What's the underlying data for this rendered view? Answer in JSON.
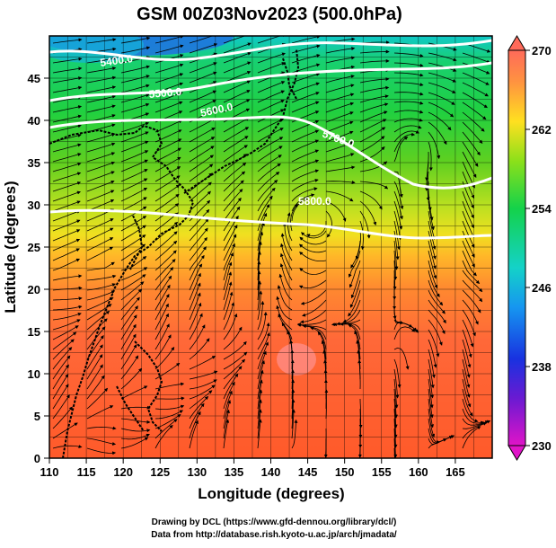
{
  "title": "GSM 00Z03Nov2023 (500.0hPa)",
  "x_axis": {
    "label": "Longitude (degrees)",
    "ticks": [
      "110",
      "115",
      "120",
      "125",
      "130",
      "135",
      "140",
      "145",
      "150",
      "155",
      "160",
      "165"
    ]
  },
  "y_axis": {
    "label": "Latitude (degrees)",
    "ticks": [
      "0",
      "5",
      "10",
      "15",
      "20",
      "25",
      "30",
      "35",
      "40",
      "45"
    ]
  },
  "contour_labels": [
    "5400.0",
    "5500.0",
    "5600.0",
    "5700.0",
    "5800.0"
  ],
  "colorbar": {
    "ticks": [
      "270",
      "262",
      "254",
      "246",
      "238",
      "230"
    ],
    "colors": [
      "#ff6a5a",
      "#ff9340",
      "#ffe020",
      "#8ce01a",
      "#14d24a",
      "#14d2c8",
      "#1696f0",
      "#1832e0",
      "#6a1ad2",
      "#e014c8"
    ]
  },
  "credits": {
    "line1": "Drawing by DCL (https://www.gfd-dennou.org/library/dcl/)",
    "line2": "Data from http://database.rish.kyoto-u.ac.jp/arch/jmadata/"
  }
}
